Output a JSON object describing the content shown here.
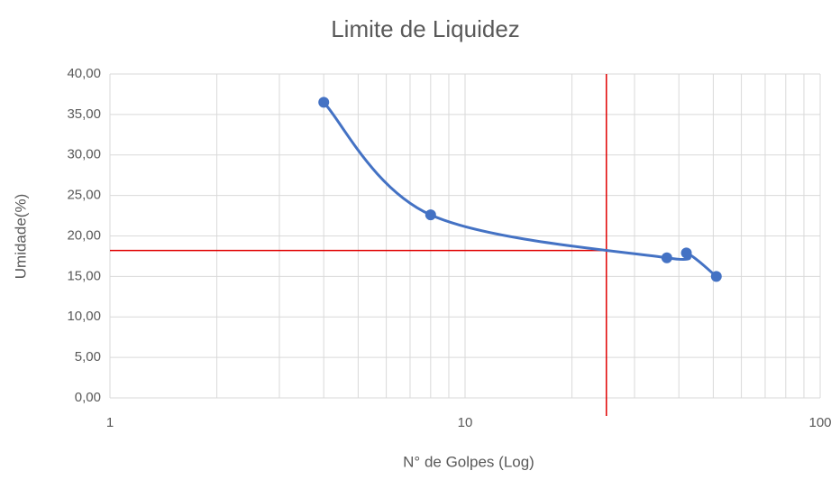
{
  "chart_data": {
    "type": "line",
    "title": "Limite de Liquidez",
    "x_label": "N° de Golpes (Log)",
    "y_label": "Umidade(%)",
    "x_log_scale": true,
    "grid": true,
    "minor_grid": true,
    "smooth": true,
    "xlim": [
      1,
      100
    ],
    "xticks": [
      1,
      10,
      100
    ],
    "ylim": [
      0,
      40
    ],
    "yticks": [
      {
        "value": 0,
        "label": "0,00"
      },
      {
        "value": 5,
        "label": "5,00"
      },
      {
        "value": 10,
        "label": "10,00"
      },
      {
        "value": 15,
        "label": "15,00"
      },
      {
        "value": 20,
        "label": "20,00"
      },
      {
        "value": 25,
        "label": "25,00"
      },
      {
        "value": 30,
        "label": "30,00"
      },
      {
        "value": 35,
        "label": "35,00"
      },
      {
        "value": 40,
        "label": "40,00"
      }
    ],
    "x": [
      4,
      8,
      37,
      42,
      51
    ],
    "series": [
      {
        "color": "#4472c4",
        "values": [
          36.5,
          22.6,
          17.3,
          17.9,
          15.0
        ]
      }
    ],
    "reference_lines": {
      "x": 25,
      "y": 18.2,
      "color": "#e00000"
    }
  }
}
